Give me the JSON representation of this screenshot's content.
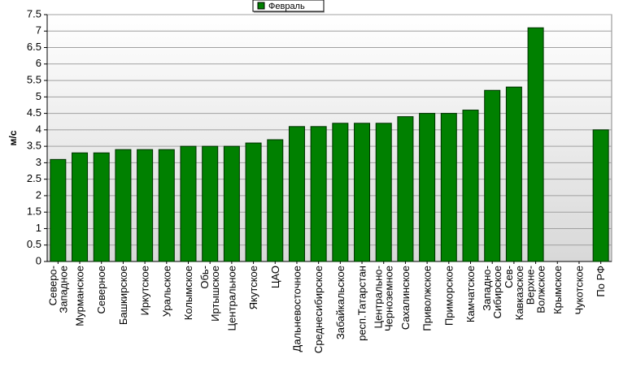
{
  "chart_data": {
    "type": "bar",
    "y_label": "м/с",
    "categories": [
      "Северо-Западное",
      "Мурманское",
      "Северное",
      "Башкирское",
      "Иркутское",
      "Уральское",
      "Колымское",
      "Обь-Иртышское",
      "Центральное",
      "Якутское",
      "ЦАО",
      "Дальневосточное",
      "Среднесибирское",
      "Забайкальское",
      "респ.Татарстан",
      "Центрально-Черноземное",
      "Сахалинское",
      "Приволжское",
      "Приморское",
      "Камчатское",
      "Западно-Сибирское",
      "Сев-Кавказское",
      "Верхне-Волжское",
      "Крымское",
      "Чукотское",
      "По РФ"
    ],
    "series": [
      {
        "name": "Февраль",
        "color": "#008000",
        "values": [
          3.1,
          3.3,
          3.3,
          3.4,
          3.4,
          3.4,
          3.5,
          3.5,
          3.5,
          3.6,
          3.7,
          4.1,
          4.1,
          4.2,
          4.2,
          4.2,
          4.4,
          4.5,
          4.5,
          4.6,
          5.2,
          5.3,
          7.1,
          null,
          null,
          4.0
        ]
      }
    ],
    "ylim": [
      0,
      7.5
    ],
    "yticks": [
      0,
      0.5,
      1,
      1.5,
      2,
      2.5,
      3,
      3.5,
      4,
      4.5,
      5,
      5.5,
      6,
      6.5,
      7,
      7.5
    ],
    "grid": true,
    "legend": "top"
  }
}
